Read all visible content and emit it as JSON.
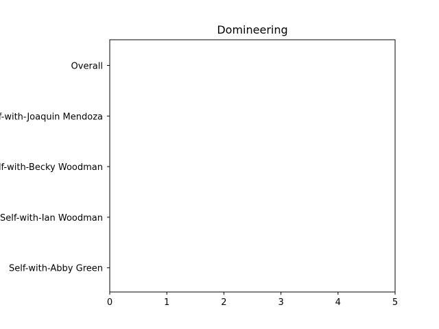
{
  "chart_data": {
    "type": "bar",
    "orientation": "horizontal",
    "title": "Domineering",
    "xlabel": "",
    "ylabel": "",
    "categories": [
      "Overall",
      "Self-with-Joaquin Mendoza",
      "Self-with-Becky Woodman",
      "Self-with-Ian Woodman",
      "Self-with-Abby Green"
    ],
    "values": [
      0,
      0,
      0,
      0,
      0
    ],
    "xlim": [
      0,
      5
    ],
    "xticks": [
      "0",
      "1",
      "2",
      "3",
      "4",
      "5"
    ],
    "grid": false,
    "colors": {
      "axis": "#000000",
      "background": "#ffffff"
    }
  }
}
